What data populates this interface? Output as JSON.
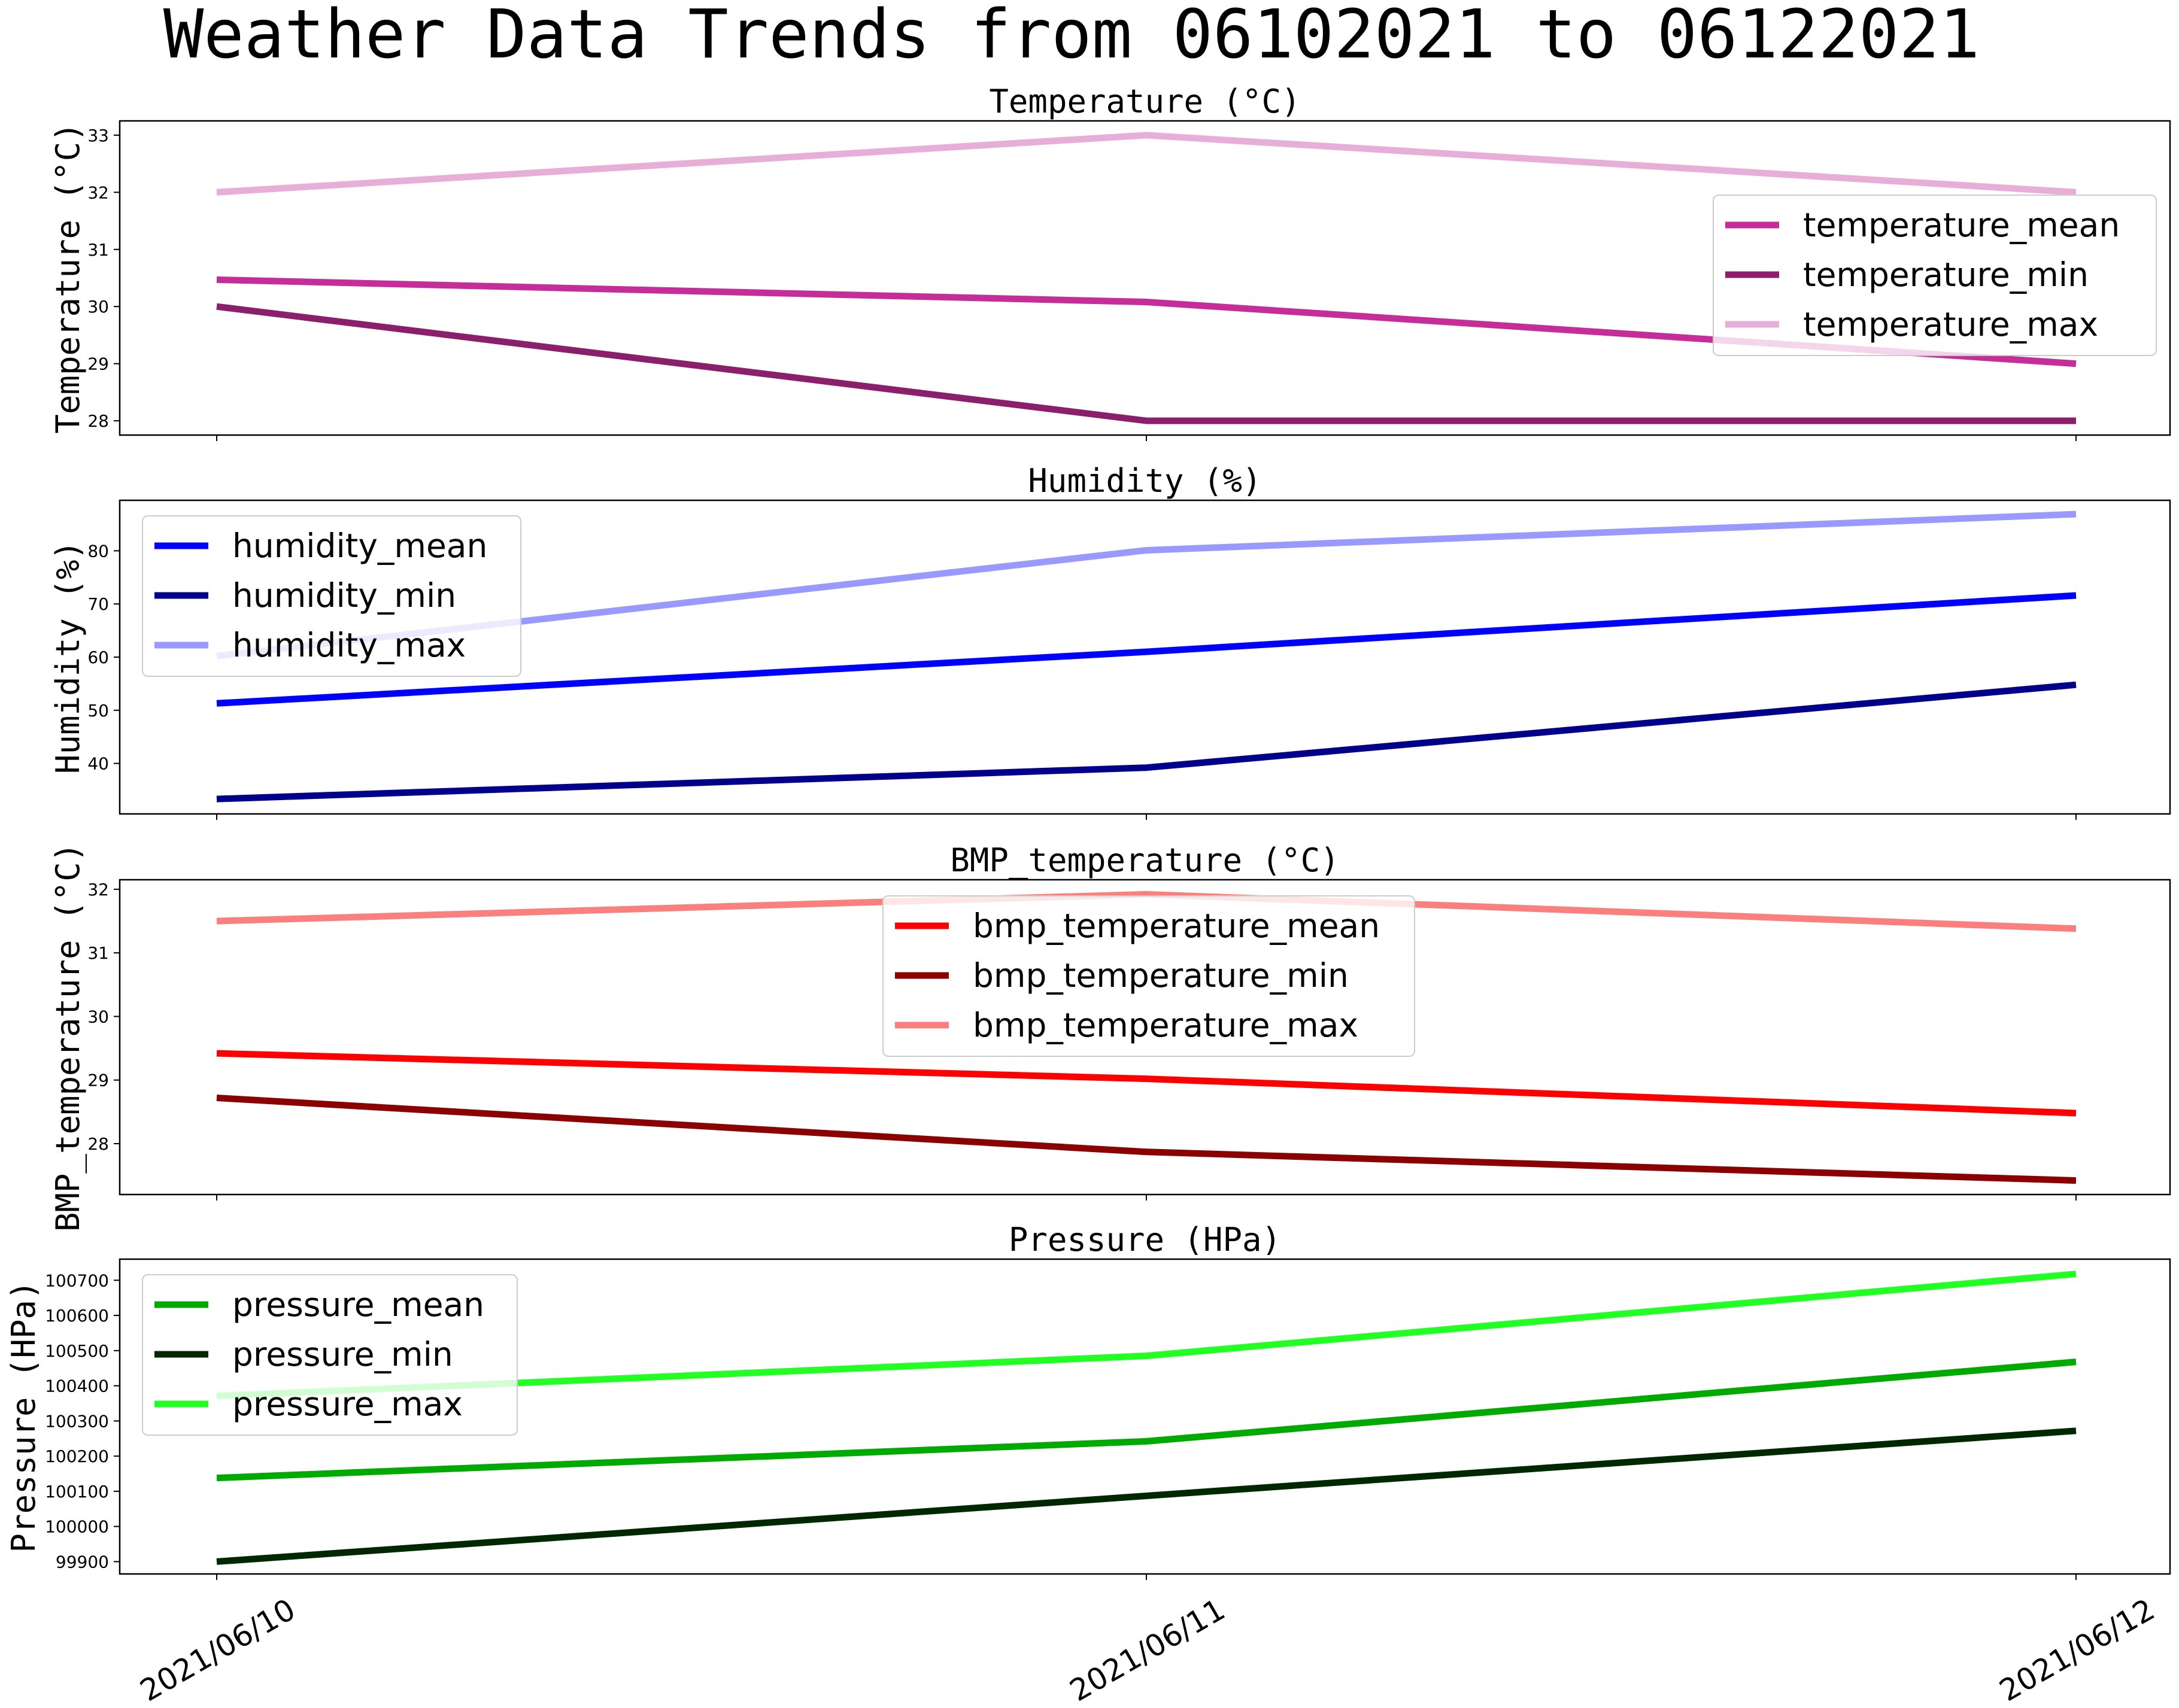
{
  "title": "Weather Data Trends from 06102021 to 06122021",
  "chart_data": [
    {
      "type": "line",
      "title": "Temperature (°C)",
      "ylabel": "Temperature (°C)",
      "x": [
        "2021/06/10",
        "2021/06/11",
        "2021/06/12"
      ],
      "ylim": [
        27.75,
        33.25
      ],
      "yticks": [
        28,
        29,
        30,
        31,
        32,
        33
      ],
      "legend": "right",
      "series": [
        {
          "name": "temperature_mean",
          "color": "#c52e99",
          "values": [
            30.47,
            30.08,
            29.0
          ]
        },
        {
          "name": "temperature_min",
          "color": "#8b1f6b",
          "values": [
            30.0,
            28.0,
            28.0
          ]
        },
        {
          "name": "temperature_max",
          "color": "#e7aed8",
          "values": [
            32.0,
            33.0,
            32.0
          ]
        }
      ]
    },
    {
      "type": "line",
      "title": "Humidity (%)",
      "ylabel": "Humidity (%)",
      "x": [
        "2021/06/10",
        "2021/06/11",
        "2021/06/12"
      ],
      "ylim": [
        30.5,
        89.5
      ],
      "yticks": [
        40,
        50,
        60,
        70,
        80
      ],
      "legend": "upper left",
      "series": [
        {
          "name": "humidity_mean",
          "color": "#0000ff",
          "values": [
            51.3,
            61.0,
            71.6
          ]
        },
        {
          "name": "humidity_min",
          "color": "#00008b",
          "values": [
            33.3,
            39.2,
            54.8
          ]
        },
        {
          "name": "humidity_max",
          "color": "#9999ff",
          "values": [
            60.2,
            80.1,
            86.9
          ]
        }
      ]
    },
    {
      "type": "line",
      "title": "BMP_temperature (°C)",
      "ylabel": "BMP_temperature (°C)",
      "x": [
        "2021/06/10",
        "2021/06/11",
        "2021/06/12"
      ],
      "ylim": [
        27.2,
        32.15
      ],
      "yticks": [
        28,
        29,
        30,
        31,
        32
      ],
      "legend": "upper center",
      "series": [
        {
          "name": "bmp_temperature_mean",
          "color": "#ff0000",
          "values": [
            29.42,
            29.02,
            28.48
          ]
        },
        {
          "name": "bmp_temperature_min",
          "color": "#8b0000",
          "values": [
            28.72,
            27.87,
            27.42
          ]
        },
        {
          "name": "bmp_temperature_max",
          "color": "#fa8080",
          "values": [
            31.5,
            31.92,
            31.38
          ]
        }
      ]
    },
    {
      "type": "line",
      "title": "Pressure (HPa)",
      "ylabel": "Pressure (HPa)",
      "x": [
        "2021/06/10",
        "2021/06/11",
        "2021/06/12"
      ],
      "ylim": [
        99865,
        100760
      ],
      "yticks": [
        99900,
        100000,
        100100,
        100200,
        100300,
        100400,
        100500,
        100600,
        100700
      ],
      "legend": "upper left",
      "series": [
        {
          "name": "pressure_mean",
          "color": "#00aa00",
          "values": [
            100138,
            100242,
            100468
          ]
        },
        {
          "name": "pressure_min",
          "color": "#002800",
          "values": [
            99900,
            100087,
            100272
          ]
        },
        {
          "name": "pressure_max",
          "color": "#22ff22",
          "values": [
            100371,
            100485,
            100718
          ]
        }
      ]
    }
  ]
}
